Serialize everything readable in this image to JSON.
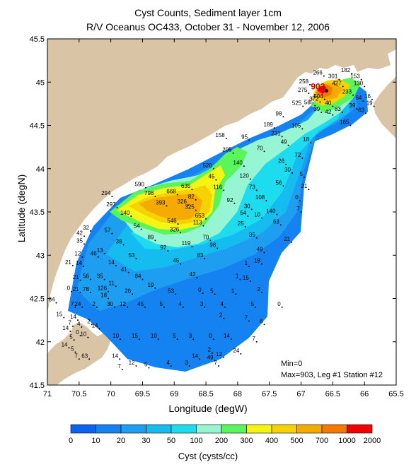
{
  "title": "Cyst Counts, Sediment layer 1cm",
  "subtitle": "R/V Oceanus OC433, October 31 - November 12, 2006",
  "xlabel": "Longitude (degW)",
  "ylabel": "Latitude (degN)",
  "x_ticks": [
    "71",
    "70.5",
    "70",
    "69.5",
    "69",
    "68.5",
    "68",
    "67.5",
    "67",
    "66.5",
    "66",
    "65.5"
  ],
  "y_ticks": [
    "45.5",
    "45",
    "44.5",
    "44",
    "43.5",
    "43",
    "42.5",
    "42",
    "41.5"
  ],
  "stats": {
    "min": "Min=0",
    "max": "Max=903, Leg #1 Station #12"
  },
  "colorbar": {
    "title": "Cyst (cysts/cc)",
    "ticks": [
      "0",
      "10",
      "20",
      "30",
      "50",
      "100",
      "200",
      "300",
      "400",
      "500",
      "700",
      "1000",
      "2000"
    ],
    "colors": [
      "#0a64f0",
      "#1482f0",
      "#1e9ef0",
      "#14bcf0",
      "#1edcf0",
      "#96f5d2",
      "#5af55a",
      "#f5f514",
      "#f5d200",
      "#f5aa00",
      "#f57800",
      "#f50000"
    ]
  },
  "colors": {
    "land": "#d9c4a6",
    "water": "#ffffff"
  },
  "stations": [
    {
      "lon": 66.6,
      "lat": 44.9,
      "label": "903"
    },
    {
      "lon": 66.64,
      "lat": 45.07,
      "label": "266"
    },
    {
      "lon": 66.86,
      "lat": 44.97,
      "label": "258"
    },
    {
      "lon": 66.4,
      "lat": 45.03,
      "label": "301"
    },
    {
      "lon": 66.2,
      "lat": 45.1,
      "label": "182"
    },
    {
      "lon": 66.05,
      "lat": 45.03,
      "label": "153"
    },
    {
      "lon": 66.0,
      "lat": 44.95,
      "label": "130"
    },
    {
      "lon": 66.34,
      "lat": 44.95,
      "label": "427"
    },
    {
      "lon": 66.18,
      "lat": 44.85,
      "label": "233"
    },
    {
      "lon": 66.88,
      "lat": 44.87,
      "label": "275"
    },
    {
      "lon": 66.63,
      "lat": 44.8,
      "label": "504"
    },
    {
      "lon": 66.7,
      "lat": 44.77,
      "label": "372"
    },
    {
      "lon": 66.78,
      "lat": 44.73,
      "label": "585"
    },
    {
      "lon": 66.97,
      "lat": 44.72,
      "label": "525"
    },
    {
      "lon": 66.5,
      "lat": 44.72,
      "label": "40"
    },
    {
      "lon": 66.68,
      "lat": 44.65,
      "label": "39"
    },
    {
      "lon": 66.5,
      "lat": 44.62,
      "label": "42"
    },
    {
      "lon": 66.35,
      "lat": 44.65,
      "label": "83"
    },
    {
      "lon": 66.12,
      "lat": 44.69,
      "label": "39"
    },
    {
      "lon": 66.02,
      "lat": 44.78,
      "label": "64"
    },
    {
      "lon": 65.88,
      "lat": 44.8,
      "label": "16"
    },
    {
      "lon": 65.85,
      "lat": 44.72,
      "label": "19"
    },
    {
      "lon": 65.98,
      "lat": 44.64,
      "label": "63"
    },
    {
      "lon": 66.22,
      "lat": 44.5,
      "label": "165"
    },
    {
      "lon": 67.28,
      "lat": 44.6,
      "label": "98"
    },
    {
      "lon": 67.42,
      "lat": 44.47,
      "label": "189"
    },
    {
      "lon": 67.3,
      "lat": 44.37,
      "label": "231"
    },
    {
      "lon": 66.98,
      "lat": 44.46,
      "label": "105"
    },
    {
      "lon": 66.85,
      "lat": 44.3,
      "label": "18"
    },
    {
      "lon": 67.2,
      "lat": 44.27,
      "label": "49"
    },
    {
      "lon": 68.18,
      "lat": 44.35,
      "label": "158"
    },
    {
      "lon": 67.82,
      "lat": 44.33,
      "label": "95"
    },
    {
      "lon": 67.58,
      "lat": 44.2,
      "label": "70"
    },
    {
      "lon": 68.07,
      "lat": 44.18,
      "label": "205"
    },
    {
      "lon": 67.9,
      "lat": 44.03,
      "label": "140"
    },
    {
      "lon": 67.24,
      "lat": 44.05,
      "label": "26"
    },
    {
      "lon": 67.14,
      "lat": 43.95,
      "label": "30"
    },
    {
      "lon": 66.98,
      "lat": 44.12,
      "label": "72"
    },
    {
      "lon": 66.95,
      "lat": 43.9,
      "label": "5"
    },
    {
      "lon": 68.38,
      "lat": 44.0,
      "label": "520"
    },
    {
      "lon": 68.34,
      "lat": 43.87,
      "label": "45"
    },
    {
      "lon": 67.8,
      "lat": 43.88,
      "label": "120"
    },
    {
      "lon": 67.28,
      "lat": 43.8,
      "label": "56"
    },
    {
      "lon": 66.88,
      "lat": 43.76,
      "label": "21"
    },
    {
      "lon": 68.22,
      "lat": 43.75,
      "label": "116"
    },
    {
      "lon": 67.7,
      "lat": 43.75,
      "label": "73"
    },
    {
      "lon": 67.55,
      "lat": 43.63,
      "label": "108"
    },
    {
      "lon": 67.02,
      "lat": 43.63,
      "label": "0"
    },
    {
      "lon": 69.45,
      "lat": 43.78,
      "label": "590"
    },
    {
      "lon": 68.72,
      "lat": 43.76,
      "label": "635"
    },
    {
      "lon": 68.95,
      "lat": 43.7,
      "label": "668"
    },
    {
      "lon": 69.3,
      "lat": 43.68,
      "label": "798"
    },
    {
      "lon": 69.98,
      "lat": 43.68,
      "label": "294"
    },
    {
      "lon": 68.66,
      "lat": 43.64,
      "label": "82"
    },
    {
      "lon": 68.78,
      "lat": 43.58,
      "label": "326"
    },
    {
      "lon": 68.66,
      "lat": 43.52,
      "label": "325"
    },
    {
      "lon": 69.12,
      "lat": 43.57,
      "label": "393"
    },
    {
      "lon": 69.9,
      "lat": 43.55,
      "label": "297"
    },
    {
      "lon": 68.05,
      "lat": 43.6,
      "label": "92"
    },
    {
      "lon": 67.78,
      "lat": 43.53,
      "label": "30"
    },
    {
      "lon": 67.84,
      "lat": 43.45,
      "label": "54"
    },
    {
      "lon": 67.62,
      "lat": 43.43,
      "label": "10"
    },
    {
      "lon": 67.38,
      "lat": 43.47,
      "label": "140"
    },
    {
      "lon": 67.0,
      "lat": 43.5,
      "label": "7"
    },
    {
      "lon": 67.32,
      "lat": 43.35,
      "label": "63"
    },
    {
      "lon": 68.5,
      "lat": 43.42,
      "label": "653"
    },
    {
      "lon": 68.54,
      "lat": 43.34,
      "label": "113"
    },
    {
      "lon": 68.94,
      "lat": 43.36,
      "label": "546"
    },
    {
      "lon": 69.68,
      "lat": 43.45,
      "label": "140"
    },
    {
      "lon": 69.52,
      "lat": 43.3,
      "label": "54"
    },
    {
      "lon": 68.9,
      "lat": 43.26,
      "label": "326"
    },
    {
      "lon": 67.88,
      "lat": 43.33,
      "label": "25"
    },
    {
      "lon": 67.7,
      "lat": 43.2,
      "label": "35"
    },
    {
      "lon": 67.15,
      "lat": 43.15,
      "label": "21"
    },
    {
      "lon": 69.3,
      "lat": 43.17,
      "label": "89"
    },
    {
      "lon": 69.98,
      "lat": 43.25,
      "label": "57"
    },
    {
      "lon": 70.32,
      "lat": 43.28,
      "label": "32"
    },
    {
      "lon": 70.42,
      "lat": 43.22,
      "label": "42"
    },
    {
      "lon": 70.42,
      "lat": 43.13,
      "label": "35"
    },
    {
      "lon": 69.8,
      "lat": 43.12,
      "label": "38"
    },
    {
      "lon": 68.72,
      "lat": 43.1,
      "label": "119"
    },
    {
      "lon": 68.43,
      "lat": 43.17,
      "label": "70"
    },
    {
      "lon": 68.32,
      "lat": 43.08,
      "label": "98"
    },
    {
      "lon": 69.1,
      "lat": 43.05,
      "label": "92"
    },
    {
      "lon": 67.58,
      "lat": 43.03,
      "label": "49"
    },
    {
      "lon": 70.1,
      "lat": 43.02,
      "label": "13"
    },
    {
      "lon": 70.45,
      "lat": 42.98,
      "label": "12"
    },
    {
      "lon": 70.2,
      "lat": 42.98,
      "label": "46"
    },
    {
      "lon": 69.6,
      "lat": 42.96,
      "label": "53"
    },
    {
      "lon": 68.52,
      "lat": 42.96,
      "label": "83"
    },
    {
      "lon": 68.9,
      "lat": 42.9,
      "label": "45"
    },
    {
      "lon": 70.6,
      "lat": 42.88,
      "label": "21"
    },
    {
      "lon": 70.43,
      "lat": 42.87,
      "label": "14"
    },
    {
      "lon": 69.92,
      "lat": 42.88,
      "label": "14"
    },
    {
      "lon": 67.82,
      "lat": 42.87,
      "label": "1"
    },
    {
      "lon": 67.62,
      "lat": 42.9,
      "label": "18"
    },
    {
      "lon": 69.72,
      "lat": 42.8,
      "label": "41"
    },
    {
      "lon": 68.64,
      "lat": 42.74,
      "label": "42"
    },
    {
      "lon": 70.32,
      "lat": 42.72,
      "label": "56"
    },
    {
      "lon": 70.1,
      "lat": 42.72,
      "label": "35"
    },
    {
      "lon": 69.5,
      "lat": 42.72,
      "label": "84"
    },
    {
      "lon": 70.48,
      "lat": 42.71,
      "label": "21"
    },
    {
      "lon": 67.96,
      "lat": 42.72,
      "label": "1"
    },
    {
      "lon": 67.8,
      "lat": 42.7,
      "label": "15"
    },
    {
      "lon": 69.92,
      "lat": 42.64,
      "label": "11"
    },
    {
      "lon": 69.3,
      "lat": 42.62,
      "label": "19"
    },
    {
      "lon": 70.32,
      "lat": 42.57,
      "label": "78"
    },
    {
      "lon": 70.48,
      "lat": 42.57,
      "label": "21"
    },
    {
      "lon": 70.62,
      "lat": 42.58,
      "label": "0"
    },
    {
      "lon": 70.04,
      "lat": 42.58,
      "label": "126"
    },
    {
      "lon": 69.66,
      "lat": 42.55,
      "label": "26"
    },
    {
      "lon": 68.98,
      "lat": 42.55,
      "label": "53"
    },
    {
      "lon": 68.55,
      "lat": 42.56,
      "label": "0"
    },
    {
      "lon": 68.36,
      "lat": 42.55,
      "label": "5"
    },
    {
      "lon": 67.62,
      "lat": 42.57,
      "label": "2"
    },
    {
      "lon": 68.03,
      "lat": 42.55,
      "label": "1"
    },
    {
      "lon": 70.04,
      "lat": 42.5,
      "label": "18"
    },
    {
      "lon": 70.86,
      "lat": 42.45,
      "label": "84"
    },
    {
      "lon": 70.56,
      "lat": 42.4,
      "label": "7"
    },
    {
      "lon": 70.45,
      "lat": 42.4,
      "label": "24"
    },
    {
      "lon": 70.22,
      "lat": 42.4,
      "label": "2"
    },
    {
      "lon": 69.94,
      "lat": 42.4,
      "label": "30"
    },
    {
      "lon": 69.74,
      "lat": 42.4,
      "label": "12"
    },
    {
      "lon": 69.46,
      "lat": 42.4,
      "label": "45"
    },
    {
      "lon": 69.16,
      "lat": 42.4,
      "label": "5"
    },
    {
      "lon": 68.86,
      "lat": 42.4,
      "label": "4"
    },
    {
      "lon": 68.52,
      "lat": 42.4,
      "label": "3"
    },
    {
      "lon": 68.2,
      "lat": 42.4,
      "label": "4"
    },
    {
      "lon": 67.72,
      "lat": 42.4,
      "label": "5"
    },
    {
      "lon": 67.3,
      "lat": 42.4,
      "label": "0"
    },
    {
      "lon": 70.74,
      "lat": 42.28,
      "label": "15"
    },
    {
      "lon": 70.52,
      "lat": 42.25,
      "label": "14"
    },
    {
      "lon": 70.6,
      "lat": 42.18,
      "label": "7"
    },
    {
      "lon": 70.46,
      "lat": 42.17,
      "label": "4"
    },
    {
      "lon": 70.3,
      "lat": 42.2,
      "label": "2"
    },
    {
      "lon": 70.18,
      "lat": 42.15,
      "label": "14"
    },
    {
      "lon": 70.64,
      "lat": 42.12,
      "label": "14"
    },
    {
      "lon": 70.48,
      "lat": 42.07,
      "label": "0"
    },
    {
      "lon": 70.36,
      "lat": 42.05,
      "label": "10"
    },
    {
      "lon": 68.22,
      "lat": 42.27,
      "label": "2"
    },
    {
      "lon": 67.82,
      "lat": 42.24,
      "label": "7"
    },
    {
      "lon": 67.58,
      "lat": 42.2,
      "label": "6"
    },
    {
      "lon": 70.58,
      "lat": 42.02,
      "label": "5"
    },
    {
      "lon": 69.85,
      "lat": 42.03,
      "label": "10"
    },
    {
      "lon": 69.55,
      "lat": 42.03,
      "label": "15"
    },
    {
      "lon": 69.25,
      "lat": 42.03,
      "label": "10"
    },
    {
      "lon": 68.95,
      "lat": 42.03,
      "label": "5"
    },
    {
      "lon": 68.7,
      "lat": 42.03,
      "label": "3"
    },
    {
      "lon": 68.38,
      "lat": 42.03,
      "label": "0"
    },
    {
      "lon": 68.1,
      "lat": 42.03,
      "label": "14"
    },
    {
      "lon": 67.7,
      "lat": 42.0,
      "label": "7"
    },
    {
      "lon": 70.66,
      "lat": 41.93,
      "label": "14"
    },
    {
      "lon": 70.56,
      "lat": 41.88,
      "label": "5"
    },
    {
      "lon": 68.4,
      "lat": 41.87,
      "label": "2"
    },
    {
      "lon": 68.22,
      "lat": 41.82,
      "label": "12"
    },
    {
      "lon": 67.95,
      "lat": 41.86,
      "label": "24"
    },
    {
      "lon": 68.6,
      "lat": 41.8,
      "label": "14"
    },
    {
      "lon": 68.36,
      "lat": 41.78,
      "label": "49"
    },
    {
      "lon": 70.34,
      "lat": 41.8,
      "label": "63"
    },
    {
      "lon": 70.5,
      "lat": 41.8,
      "label": "7"
    },
    {
      "lon": 69.86,
      "lat": 41.8,
      "label": "14"
    },
    {
      "lon": 69.6,
      "lat": 41.72,
      "label": "12"
    },
    {
      "lon": 69.4,
      "lat": 41.7,
      "label": "5"
    },
    {
      "lon": 69.05,
      "lat": 41.72,
      "label": "4"
    },
    {
      "lon": 68.76,
      "lat": 41.72,
      "label": "3"
    },
    {
      "lon": 68.3,
      "lat": 41.72,
      "label": "7"
    },
    {
      "lon": 69.82,
      "lat": 41.68,
      "label": "7"
    }
  ]
}
